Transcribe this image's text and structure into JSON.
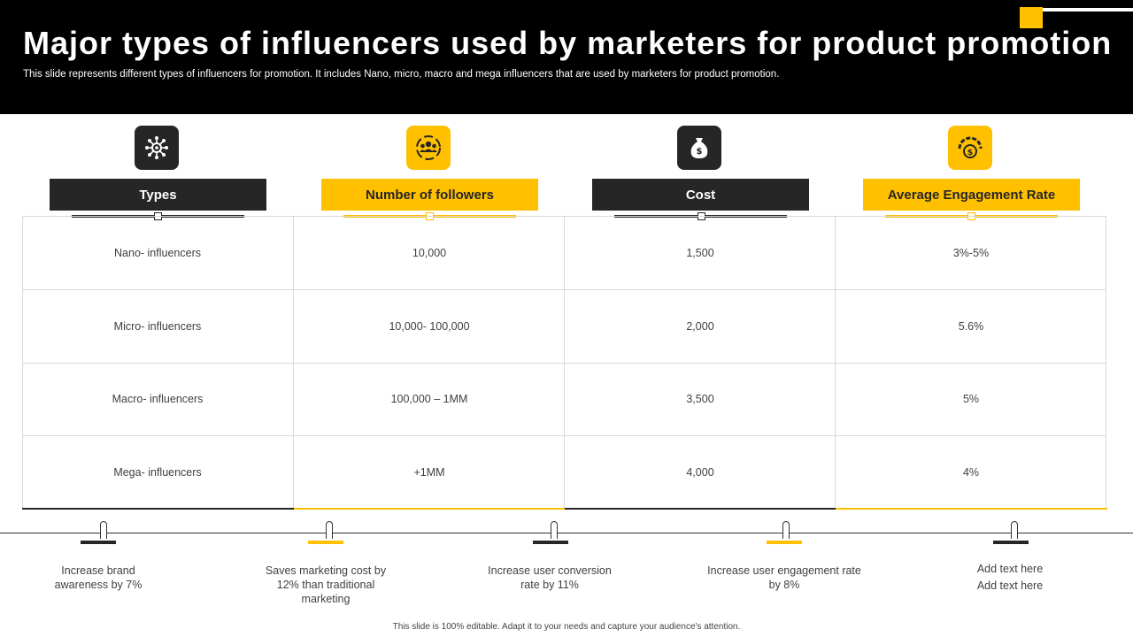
{
  "header": {
    "title": "Major types of influencers used by marketers for product promotion",
    "subtitle": "This slide represents different types of influencers for promotion. It includes Nano, micro, macro and mega influencers that are used by marketers for product promotion."
  },
  "columns": [
    {
      "label": "Types",
      "icon": "network-icon",
      "style": "dark"
    },
    {
      "label": "Number of followers",
      "icon": "followers-icon",
      "style": "yellow"
    },
    {
      "label": "Cost",
      "icon": "money-bag-icon",
      "style": "dark"
    },
    {
      "label": "Average Engagement Rate",
      "icon": "gauge-dollar-icon",
      "style": "yellow"
    }
  ],
  "rows": [
    [
      "Nano- influencers",
      "10,000",
      "1,500",
      "3%-5%"
    ],
    [
      "Micro- influencers",
      "10,000- 100,000",
      "2,000",
      "5.6%"
    ],
    [
      "Macro- influencers",
      "100,000 – 1MM",
      "3,500",
      "5%"
    ],
    [
      "Mega- influencers",
      "+1MM",
      "4,000",
      "4%"
    ]
  ],
  "timeline": [
    {
      "lines": [
        "Increase brand",
        "awareness  by 7%"
      ],
      "style": "dark"
    },
    {
      "lines": [
        "Saves marketing cost by",
        "12% than traditional",
        "marketing"
      ],
      "style": "yellow"
    },
    {
      "lines": [
        "Increase user conversion",
        "rate by 11%"
      ],
      "style": "dark"
    },
    {
      "lines": [
        "Increase user engagement rate",
        "by 8%"
      ],
      "style": "yellow"
    },
    {
      "lines": [
        "Add text here",
        "Add text here"
      ],
      "style": "dark"
    }
  ],
  "footer": "This slide is 100% editable.  Adapt it to your needs and capture your audience's attention.",
  "colors": {
    "accent": "#FFC000",
    "dark": "#262626",
    "header_bg": "#000000"
  }
}
